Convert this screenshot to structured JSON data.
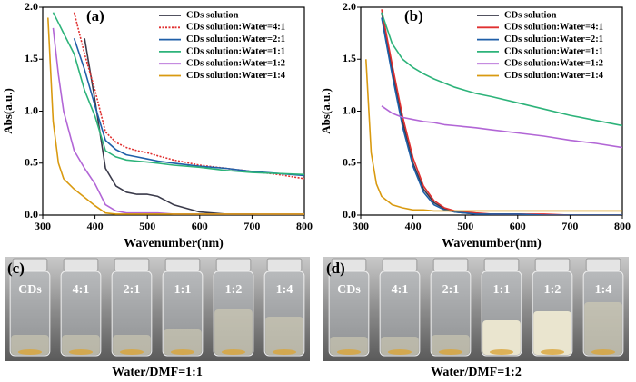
{
  "chart_data": [
    {
      "type": "line",
      "panel_label": "(a)",
      "x_label": "Wavenumber(nm)",
      "y_label": "Abs(a.u.)",
      "x": [
        300,
        310,
        320,
        330,
        340,
        360,
        380,
        400,
        420,
        440,
        460,
        480,
        500,
        520,
        550,
        600,
        650,
        700,
        750,
        800
      ],
      "xlim": [
        300,
        800
      ],
      "xticks": [
        300,
        400,
        500,
        600,
        700,
        800
      ],
      "ylim": [
        0,
        2
      ],
      "yticks": [
        {
          "value": 0,
          "label": "0.0"
        },
        {
          "value": 0.5,
          "label": "0.5"
        },
        {
          "value": 1,
          "label": "1.0"
        },
        {
          "value": 1.5,
          "label": "1.5"
        },
        {
          "value": 2,
          "label": "2.0"
        }
      ],
      "legend": "upper right",
      "series": [
        {
          "name": "CDs solution",
          "color": "#3a3a4a",
          "values": [
            null,
            null,
            null,
            null,
            null,
            null,
            1.7,
            1.1,
            0.45,
            0.28,
            0.22,
            0.2,
            0.2,
            0.18,
            0.1,
            0.03,
            0.01,
            0.01,
            0,
            0
          ]
        },
        {
          "name": "CDs solution:Water=4:1",
          "color": "#e03030",
          "style": "dotted",
          "values": [
            null,
            null,
            null,
            null,
            null,
            1.95,
            1.55,
            1.2,
            0.8,
            0.7,
            0.65,
            0.62,
            0.6,
            0.57,
            0.53,
            0.48,
            0.45,
            0.42,
            0.39,
            0.35
          ]
        },
        {
          "name": "CDs solution:Water=2:1",
          "color": "#1f5fa8",
          "values": [
            null,
            null,
            null,
            null,
            null,
            1.7,
            1.4,
            1.05,
            0.72,
            0.63,
            0.58,
            0.56,
            0.54,
            0.52,
            0.5,
            0.47,
            0.45,
            0.42,
            0.4,
            0.38
          ]
        },
        {
          "name": "CDs solution:Water=1:1",
          "color": "#2db37a",
          "values": [
            null,
            null,
            1.95,
            1.85,
            1.75,
            1.55,
            1.2,
            0.95,
            0.62,
            0.56,
            0.53,
            0.52,
            0.51,
            0.5,
            0.48,
            0.46,
            0.43,
            0.41,
            0.4,
            0.39
          ]
        },
        {
          "name": "CDs solution:Water=1:2",
          "color": "#b266d6",
          "values": [
            null,
            null,
            1.8,
            1.35,
            1.0,
            0.62,
            0.45,
            0.3,
            0.1,
            0.04,
            0.02,
            0.02,
            0.02,
            0.02,
            0.01,
            0.01,
            0.01,
            0.01,
            0.01,
            0.01
          ]
        },
        {
          "name": "CDs solution:Water=1:4",
          "color": "#d99a10",
          "values": [
            null,
            1.9,
            0.9,
            0.5,
            0.35,
            0.25,
            0.17,
            0.09,
            0.02,
            0.01,
            0.01,
            0.01,
            0.01,
            0.01,
            0.01,
            0.01,
            0.01,
            0.01,
            0.01,
            0.01
          ]
        }
      ]
    },
    {
      "type": "line",
      "panel_label": "(b)",
      "x_label": "Wavenumber(nm)",
      "y_label": "Abs(a.u.)",
      "x": [
        300,
        310,
        320,
        330,
        340,
        360,
        380,
        400,
        420,
        440,
        460,
        480,
        500,
        520,
        550,
        600,
        650,
        700,
        750,
        800
      ],
      "xlim": [
        300,
        800
      ],
      "xticks": [
        300,
        400,
        500,
        600,
        700,
        800
      ],
      "ylim": [
        0,
        2
      ],
      "yticks": [
        {
          "value": 0,
          "label": "0.0"
        },
        {
          "value": 0.5,
          "label": "0.5"
        },
        {
          "value": 1,
          "label": "1.0"
        },
        {
          "value": 1.5,
          "label": "1.5"
        },
        {
          "value": 2,
          "label": "2.0"
        }
      ],
      "legend": "upper right",
      "series": [
        {
          "name": "CDs solution",
          "color": "#3a3a4a",
          "values": [
            null,
            null,
            null,
            null,
            1.95,
            1.4,
            0.9,
            0.5,
            0.25,
            0.12,
            0.06,
            0.03,
            0.02,
            0.01,
            0.01,
            0.01,
            0,
            0,
            0,
            0
          ]
        },
        {
          "name": "CDs solution:Water=4:1",
          "color": "#e03030",
          "values": [
            null,
            null,
            null,
            null,
            1.98,
            1.45,
            0.95,
            0.55,
            0.28,
            0.14,
            0.07,
            0.04,
            0.03,
            0.02,
            0.01,
            0.01,
            0.01,
            0,
            0,
            0
          ]
        },
        {
          "name": "CDs solution:Water=2:1",
          "color": "#1f5fa8",
          "values": [
            null,
            null,
            null,
            null,
            1.9,
            1.35,
            0.85,
            0.47,
            0.22,
            0.1,
            0.05,
            0.03,
            0.02,
            0.01,
            0.01,
            0.01,
            0,
            0,
            0,
            0
          ]
        },
        {
          "name": "CDs solution:Water=1:1",
          "color": "#2db37a",
          "values": [
            null,
            null,
            null,
            null,
            1.95,
            1.65,
            1.5,
            1.42,
            1.36,
            1.31,
            1.27,
            1.23,
            1.2,
            1.17,
            1.14,
            1.08,
            1.02,
            0.96,
            0.91,
            0.86
          ]
        },
        {
          "name": "CDs solution:Water=1:2",
          "color": "#b266d6",
          "values": [
            null,
            null,
            null,
            null,
            1.05,
            0.98,
            0.94,
            0.92,
            0.9,
            0.89,
            0.87,
            0.86,
            0.85,
            0.84,
            0.82,
            0.79,
            0.76,
            0.72,
            0.69,
            0.65
          ]
        },
        {
          "name": "CDs solution:Water=1:4",
          "color": "#d99a10",
          "values": [
            null,
            1.5,
            0.6,
            0.3,
            0.18,
            0.1,
            0.07,
            0.05,
            0.05,
            0.04,
            0.04,
            0.04,
            0.04,
            0.04,
            0.04,
            0.04,
            0.04,
            0.04,
            0.04,
            0.04
          ]
        }
      ]
    }
  ],
  "photos": [
    {
      "panel_label": "(c)",
      "vial_labels": [
        "CDs",
        "4:1",
        "2:1",
        "1:1",
        "1:2",
        "1:4"
      ],
      "caption": "Water/DMF=1:1"
    },
    {
      "panel_label": "(d)",
      "vial_labels": [
        "CDs",
        "4:1",
        "2:1",
        "1:1",
        "1:2",
        "1:4"
      ],
      "caption": "Water/DMF=1:2"
    }
  ]
}
